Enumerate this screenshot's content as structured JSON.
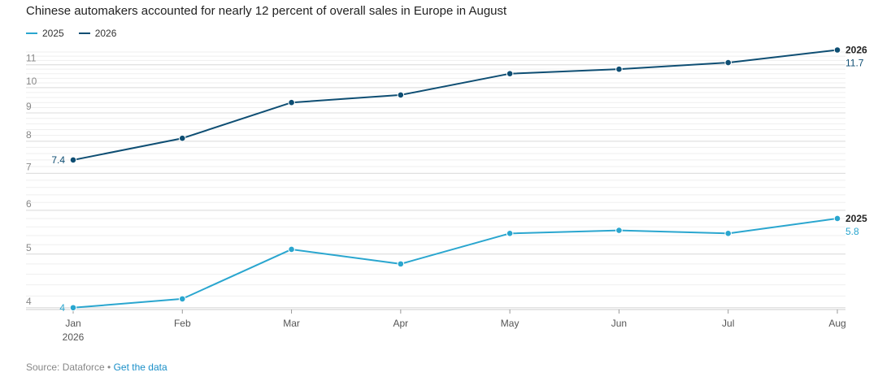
{
  "title": "Chinese automakers accounted for nearly 12 percent of overall sales in Europe in August",
  "footer": {
    "source": "Source: Dataforce",
    "separator": " • ",
    "link_label": "Get the data"
  },
  "colors": {
    "series_2025": "#2aa6cf",
    "series_2026": "#0e4e73",
    "grid": "#e6e6e6",
    "axis": "#cccccc"
  },
  "chart_data": {
    "type": "line",
    "categories": [
      "Jan",
      "Feb",
      "Mar",
      "Apr",
      "May",
      "Jun",
      "Jul",
      "Aug"
    ],
    "x_sublabel": "2026",
    "y_ticks": [
      4,
      5,
      6,
      7,
      8,
      9,
      10,
      11
    ],
    "y_scale": "log",
    "ylim": [
      3.97,
      11.72
    ],
    "grid": true,
    "legend_position": "top-left",
    "series": [
      {
        "name": "2025",
        "values": [
          4.0,
          4.15,
          5.1,
          4.8,
          5.45,
          5.52,
          5.45,
          5.8
        ],
        "start_label": "4",
        "end_name": "2025",
        "end_label": "5.8"
      },
      {
        "name": "2026",
        "values": [
          7.4,
          8.1,
          9.4,
          9.7,
          10.6,
          10.8,
          11.1,
          11.7
        ],
        "start_label": "7.4",
        "end_name": "2026",
        "end_label": "11.7"
      }
    ]
  }
}
